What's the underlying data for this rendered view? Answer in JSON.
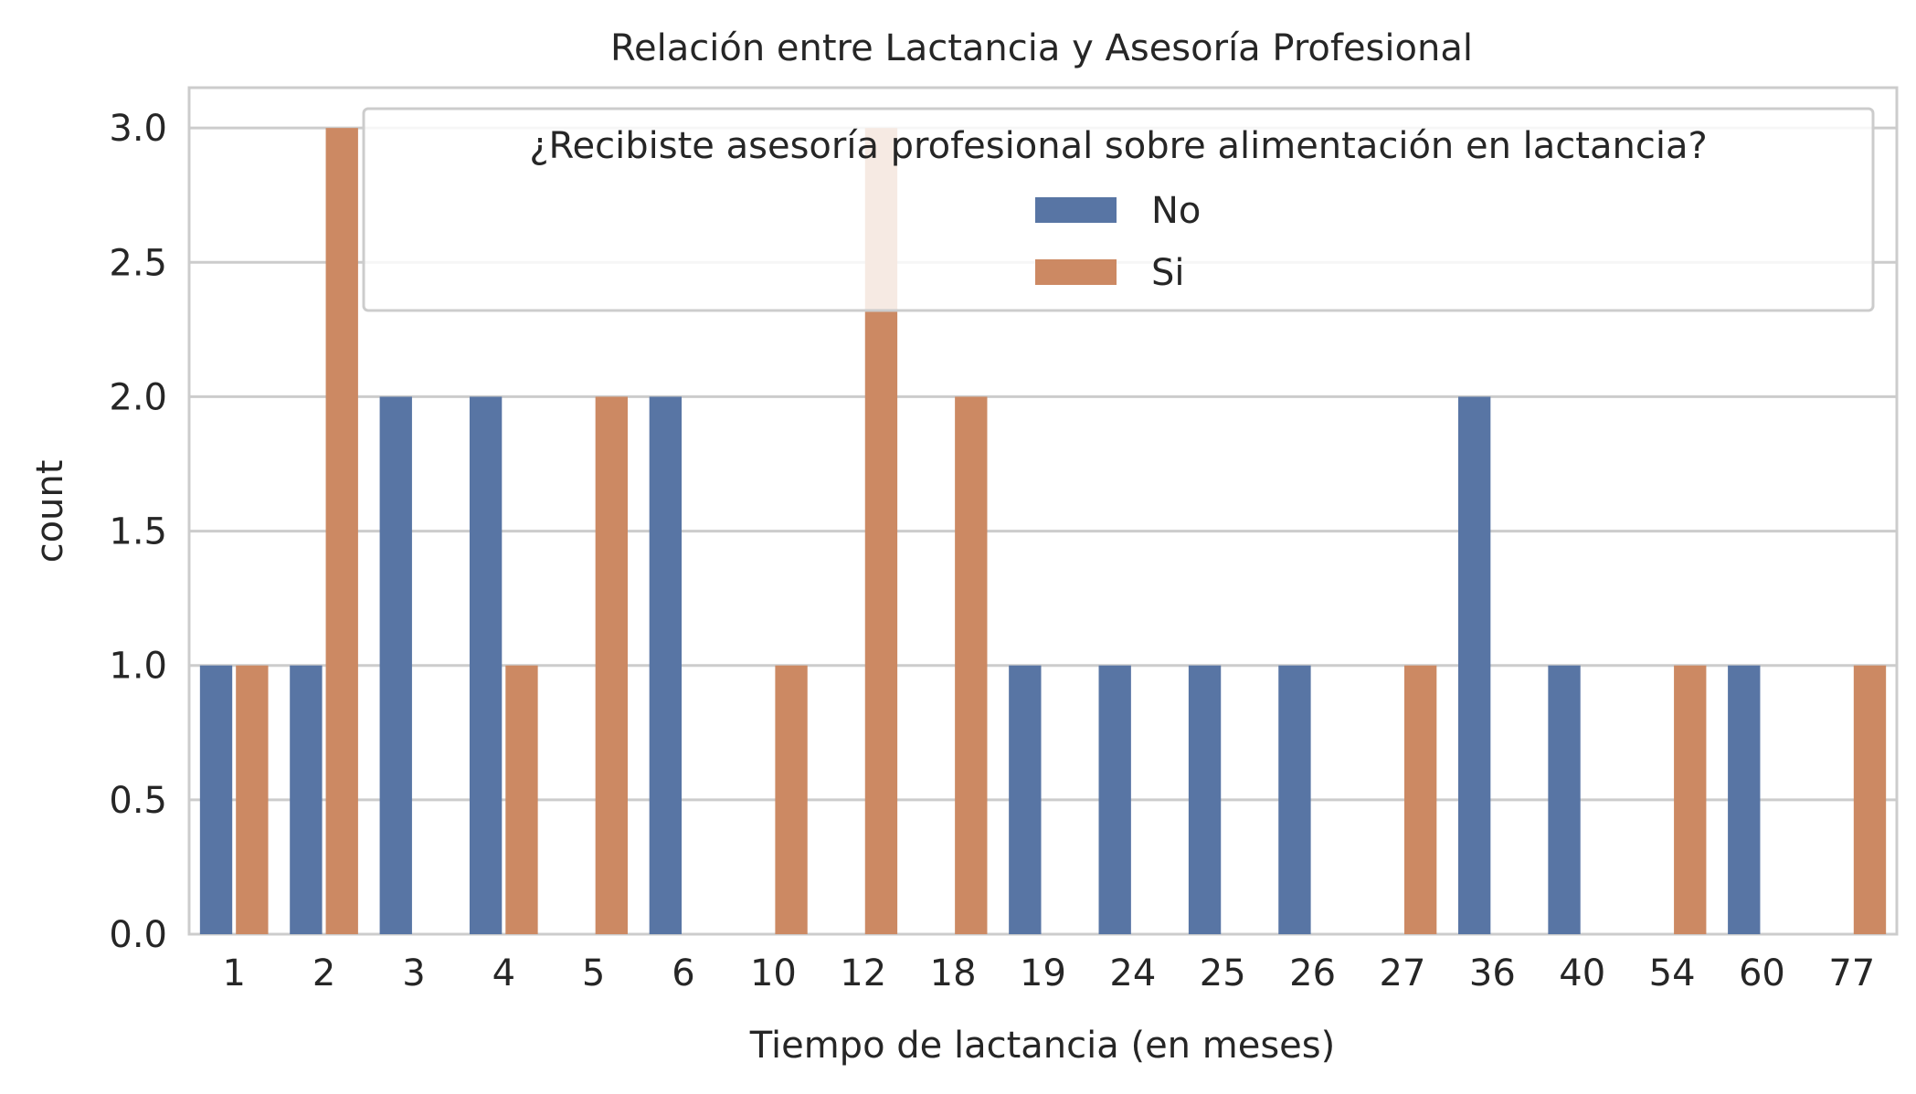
{
  "chart_data": {
    "type": "bar",
    "title": "Relación entre Lactancia y Asesoría Profesional",
    "xlabel": "Tiempo de lactancia (en meses)",
    "ylabel": "count",
    "ylim": [
      0,
      3.15
    ],
    "yticks": [
      "0.0",
      "0.5",
      "1.0",
      "1.5",
      "2.0",
      "2.5",
      "3.0"
    ],
    "grid": true,
    "categories": [
      "1",
      "2",
      "3",
      "4",
      "5",
      "6",
      "10",
      "12",
      "18",
      "19",
      "24",
      "25",
      "26",
      "27",
      "36",
      "40",
      "54",
      "60",
      "77"
    ],
    "legend": {
      "title": "¿Recibiste asesoría profesional sobre alimentación en lactancia?",
      "placement": "upper-right"
    },
    "series": [
      {
        "name": "No",
        "color": "#5875a4",
        "values": [
          1,
          1,
          2,
          2,
          0,
          2,
          0,
          0,
          0,
          1,
          1,
          1,
          1,
          0,
          2,
          1,
          0,
          1,
          0
        ]
      },
      {
        "name": "Si",
        "color": "#cc8963",
        "values": [
          1,
          3,
          0,
          1,
          2,
          0,
          1,
          3,
          2,
          0,
          0,
          0,
          0,
          1,
          0,
          0,
          1,
          0,
          1
        ]
      }
    ]
  }
}
